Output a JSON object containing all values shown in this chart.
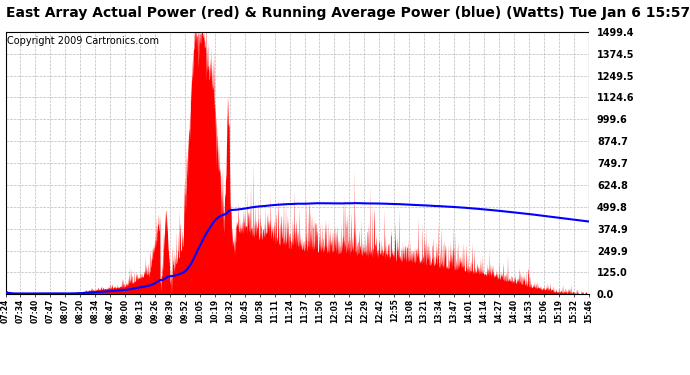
{
  "title": "East Array Actual Power (red) & Running Average Power (blue) (Watts) Tue Jan 6 15:57",
  "copyright": "Copyright 2009 Cartronics.com",
  "ylabel_right_values": [
    0.0,
    125.0,
    249.9,
    374.9,
    499.8,
    624.8,
    749.7,
    874.7,
    999.6,
    1124.6,
    1249.5,
    1374.5,
    1499.4
  ],
  "ymax": 1499.4,
  "ymin": 0.0,
  "x_tick_labels": [
    "07:24",
    "07:34",
    "07:40",
    "07:47",
    "08:07",
    "08:20",
    "08:34",
    "08:47",
    "09:00",
    "09:13",
    "09:26",
    "09:39",
    "09:52",
    "10:05",
    "10:19",
    "10:32",
    "10:45",
    "10:58",
    "11:11",
    "11:24",
    "11:37",
    "11:50",
    "12:03",
    "12:16",
    "12:29",
    "12:42",
    "12:55",
    "13:08",
    "13:21",
    "13:34",
    "13:47",
    "14:01",
    "14:14",
    "14:27",
    "14:40",
    "14:53",
    "15:06",
    "15:19",
    "15:32",
    "15:46"
  ],
  "bg_color": "#ffffff",
  "grid_color": "#bbbbbb",
  "actual_color": "#ff0000",
  "avg_color": "#0000ff",
  "title_color": "#000000",
  "title_fontsize": 10,
  "copyright_fontsize": 7
}
